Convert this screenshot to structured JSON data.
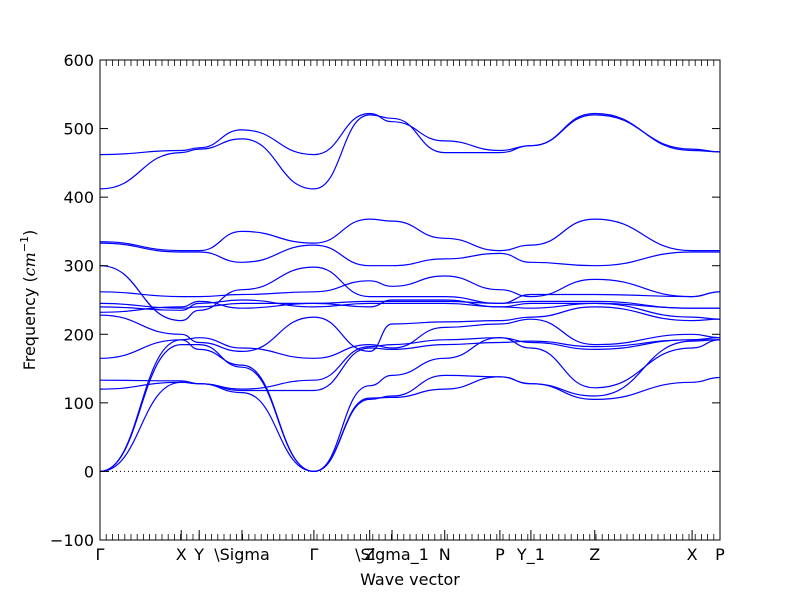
{
  "chart_data": {
    "type": "line",
    "title": "",
    "xlabel": "Wave vector",
    "ylabel_text": "Frequency (",
    "ylabel_unit": "cm",
    "ylabel_exp": "−1",
    "ylabel_close": ")",
    "ylim": [
      -100,
      600
    ],
    "xlim": [
      0,
      1
    ],
    "yticks": [
      -100,
      0,
      100,
      200,
      300,
      400,
      500,
      600
    ],
    "ytick_labels": [
      "−100",
      "0",
      "100",
      "200",
      "300",
      "400",
      "500",
      "600"
    ],
    "xticks": [
      {
        "label": "Γ",
        "x": 0.0
      },
      {
        "label": "X",
        "x": 0.131
      },
      {
        "label": "Y",
        "x": 0.16
      },
      {
        "label": "\\Sigma",
        "x": 0.229
      },
      {
        "label": "Γ",
        "x": 0.345
      },
      {
        "label": "Z",
        "x": 0.435
      },
      {
        "label": "\\Sigma_1",
        "x": 0.471
      },
      {
        "label": "N",
        "x": 0.556
      },
      {
        "label": "P",
        "x": 0.645
      },
      {
        "label": "Y_1",
        "x": 0.695
      },
      {
        "label": "Z",
        "x": 0.798
      },
      {
        "label": "X",
        "x": 0.955
      },
      {
        "label": "P",
        "x": 1.0
      }
    ],
    "line_color": "#0000ff",
    "zero_line_style": "dotted",
    "series": [
      {
        "x": [
          0,
          0.131,
          0.16,
          0.229,
          0.345,
          0.435,
          0.471,
          0.556,
          0.645,
          0.695,
          0.798,
          0.955,
          1.0
        ],
        "y": [
          0,
          130,
          128,
          115,
          0,
          107,
          108,
          120,
          138,
          128,
          105,
          130,
          137
        ]
      },
      {
        "x": [
          0,
          0.131,
          0.16,
          0.229,
          0.345,
          0.435,
          0.471,
          0.556,
          0.645,
          0.695,
          0.798,
          0.955,
          1.0
        ],
        "y": [
          0,
          185,
          185,
          152,
          0,
          125,
          140,
          165,
          195,
          180,
          122,
          180,
          192
        ]
      },
      {
        "x": [
          0,
          0.131,
          0.16,
          0.229,
          0.345,
          0.435,
          0.471,
          0.556,
          0.645,
          0.695,
          0.798,
          0.955,
          1.0
        ],
        "y": [
          0,
          192,
          178,
          155,
          0,
          105,
          110,
          140,
          138,
          128,
          110,
          190,
          192
        ]
      },
      {
        "x": [
          0,
          0.131,
          0.16,
          0.229,
          0.345,
          0.435,
          0.471,
          0.556,
          0.645,
          0.695,
          0.798,
          0.955,
          1.0
        ],
        "y": [
          120,
          130,
          128,
          118,
          118,
          180,
          178,
          185,
          188,
          190,
          182,
          192,
          192
        ]
      },
      {
        "x": [
          0,
          0.131,
          0.16,
          0.229,
          0.345,
          0.435,
          0.471,
          0.556,
          0.645,
          0.695,
          0.798,
          0.955,
          1.0
        ],
        "y": [
          133,
          132,
          128,
          120,
          133,
          182,
          185,
          192,
          195,
          188,
          178,
          192,
          195
        ]
      },
      {
        "x": [
          0,
          0.131,
          0.16,
          0.229,
          0.345,
          0.435,
          0.471,
          0.556,
          0.645,
          0.695,
          0.798,
          0.955,
          1.0
        ],
        "y": [
          165,
          192,
          195,
          180,
          165,
          185,
          180,
          210,
          215,
          222,
          185,
          200,
          195
        ]
      },
      {
        "x": [
          0,
          0.131,
          0.16,
          0.229,
          0.345,
          0.435,
          0.471,
          0.556,
          0.645,
          0.695,
          0.798,
          0.955,
          1.0
        ],
        "y": [
          228,
          200,
          188,
          175,
          225,
          175,
          215,
          218,
          220,
          225,
          240,
          220,
          222
        ]
      },
      {
        "x": [
          0,
          0.131,
          0.16,
          0.229,
          0.345,
          0.435,
          0.471,
          0.556,
          0.645,
          0.695,
          0.798,
          0.955,
          1.0
        ],
        "y": [
          232,
          240,
          248,
          238,
          245,
          240,
          250,
          250,
          240,
          238,
          245,
          225,
          222
        ]
      },
      {
        "x": [
          0,
          0.131,
          0.16,
          0.229,
          0.345,
          0.435,
          0.471,
          0.556,
          0.645,
          0.695,
          0.798,
          0.955,
          1.0
        ],
        "y": [
          240,
          235,
          245,
          250,
          240,
          245,
          245,
          245,
          240,
          245,
          245,
          238,
          238
        ]
      },
      {
        "x": [
          0,
          0.131,
          0.16,
          0.229,
          0.345,
          0.435,
          0.471,
          0.556,
          0.645,
          0.695,
          0.798,
          0.955,
          1.0
        ],
        "y": [
          245,
          238,
          240,
          245,
          245,
          248,
          248,
          248,
          245,
          248,
          248,
          238,
          238
        ]
      },
      {
        "x": [
          0,
          0.131,
          0.16,
          0.229,
          0.345,
          0.435,
          0.471,
          0.556,
          0.645,
          0.695,
          0.798,
          0.955,
          1.0
        ],
        "y": [
          262,
          255,
          255,
          258,
          262,
          278,
          270,
          285,
          265,
          255,
          280,
          255,
          262
        ]
      },
      {
        "x": [
          0,
          0.131,
          0.16,
          0.229,
          0.345,
          0.435,
          0.471,
          0.556,
          0.645,
          0.695,
          0.798,
          0.955,
          1.0
        ],
        "y": [
          300,
          220,
          235,
          265,
          298,
          255,
          255,
          255,
          245,
          258,
          258,
          255,
          262
        ]
      },
      {
        "x": [
          0,
          0.131,
          0.16,
          0.229,
          0.345,
          0.435,
          0.471,
          0.556,
          0.645,
          0.695,
          0.798,
          0.955,
          1.0
        ],
        "y": [
          335,
          322,
          322,
          350,
          333,
          368,
          365,
          340,
          322,
          330,
          368,
          322,
          322
        ]
      },
      {
        "x": [
          0,
          0.131,
          0.16,
          0.229,
          0.345,
          0.435,
          0.471,
          0.556,
          0.645,
          0.695,
          0.798,
          0.955,
          1.0
        ],
        "y": [
          333,
          320,
          320,
          305,
          330,
          300,
          300,
          310,
          318,
          305,
          300,
          320,
          320
        ]
      },
      {
        "x": [
          0,
          0.131,
          0.16,
          0.229,
          0.345,
          0.435,
          0.471,
          0.556,
          0.645,
          0.695,
          0.798,
          0.955,
          1.0
        ],
        "y": [
          412,
          465,
          470,
          485,
          412,
          520,
          515,
          465,
          465,
          475,
          520,
          470,
          466
        ]
      },
      {
        "x": [
          0,
          0.131,
          0.16,
          0.229,
          0.345,
          0.435,
          0.471,
          0.556,
          0.645,
          0.695,
          0.798,
          0.955,
          1.0
        ],
        "y": [
          462,
          468,
          472,
          498,
          462,
          522,
          510,
          482,
          468,
          475,
          522,
          468,
          466
        ]
      }
    ]
  }
}
